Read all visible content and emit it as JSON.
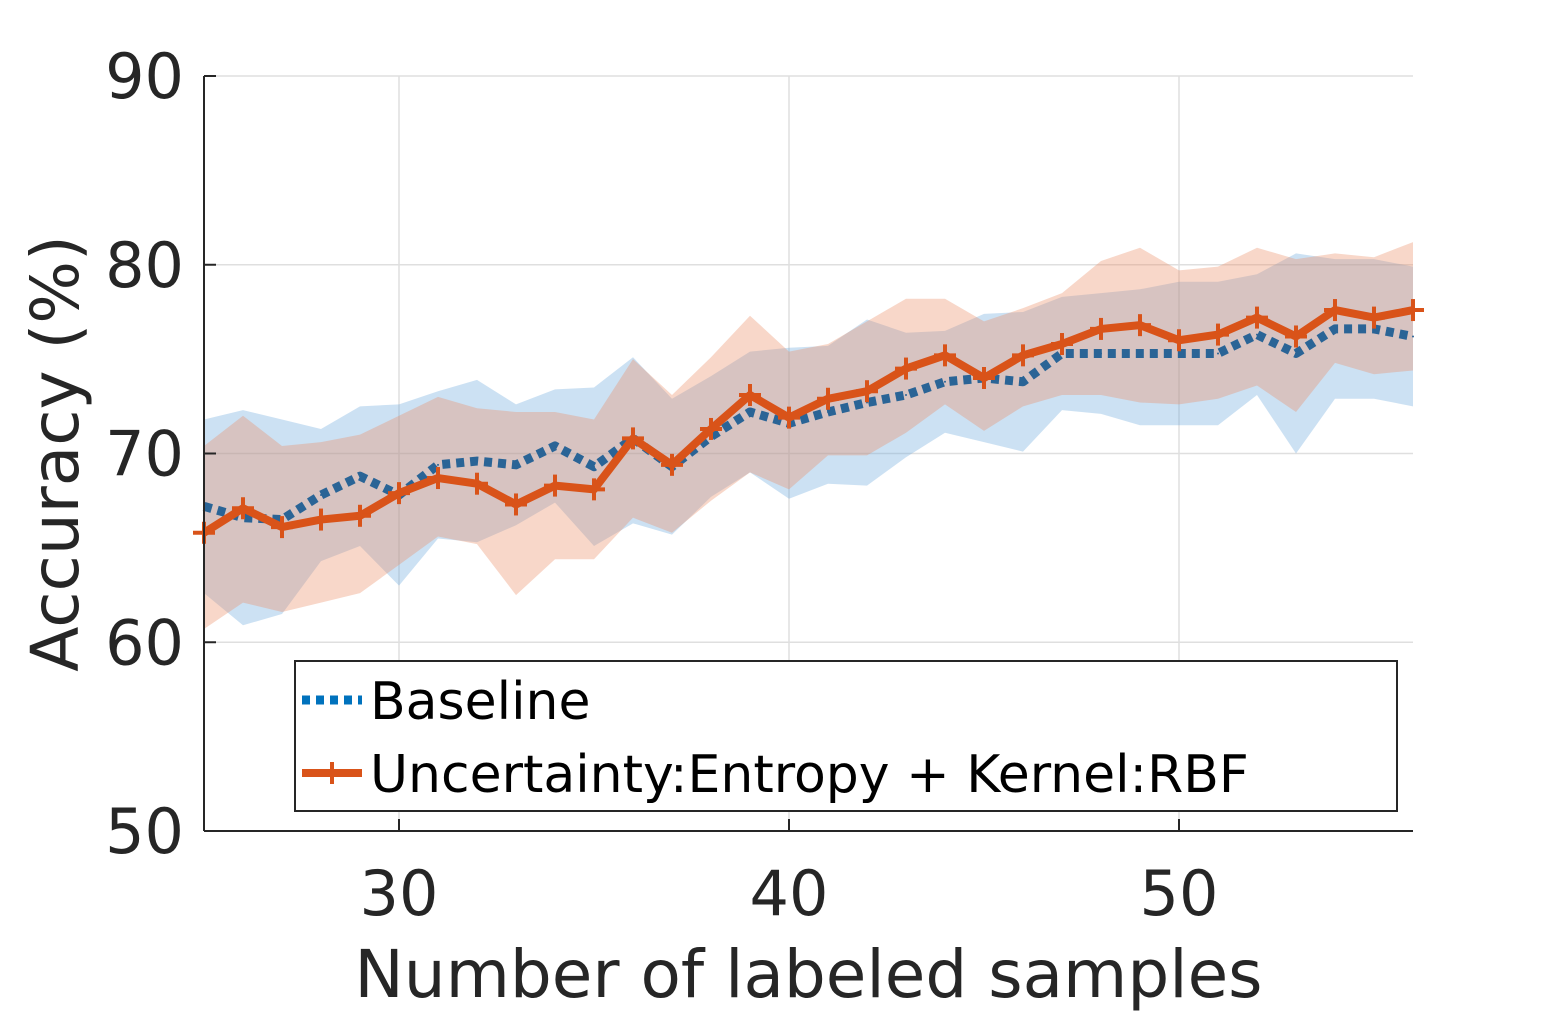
{
  "chart_data": {
    "type": "line",
    "title": "",
    "xlabel": "Number of labeled samples",
    "ylabel": "Accuracy (%)",
    "xlim": [
      25,
      56
    ],
    "ylim": [
      50,
      90
    ],
    "xticks": [
      30,
      40,
      50
    ],
    "yticks": [
      50,
      60,
      70,
      80,
      90
    ],
    "grid": true,
    "legend": {
      "position": "bottom-center",
      "entries": [
        "Baseline",
        "Uncertainty:Entropy + Kernel:RBF"
      ]
    },
    "x": [
      25,
      26,
      27,
      28,
      29,
      30,
      31,
      32,
      33,
      34,
      35,
      36,
      37,
      38,
      39,
      40,
      41,
      42,
      43,
      44,
      45,
      46,
      47,
      48,
      49,
      50,
      51,
      52,
      53,
      54,
      55,
      56
    ],
    "series": [
      {
        "name": "Baseline",
        "color": "#0072BD",
        "line_color": "#2A6496",
        "style": "dotted",
        "marker": "none",
        "values": [
          67.2,
          66.6,
          66.5,
          67.8,
          68.8,
          67.8,
          69.4,
          69.6,
          69.4,
          70.4,
          69.3,
          70.8,
          69.3,
          70.9,
          72.2,
          71.6,
          72.2,
          72.7,
          73.1,
          73.8,
          74.0,
          73.8,
          75.3,
          75.3,
          75.3,
          75.3,
          75.3,
          76.3,
          75.3,
          76.6,
          76.6,
          76.2
        ],
        "upper": [
          71.8,
          72.3,
          71.8,
          71.3,
          72.5,
          72.6,
          73.3,
          73.9,
          72.6,
          73.4,
          73.5,
          75.1,
          72.9,
          74.1,
          75.4,
          75.6,
          75.7,
          77.1,
          76.4,
          76.5,
          77.4,
          77.5,
          78.3,
          78.5,
          78.7,
          79.1,
          79.1,
          79.5,
          80.6,
          80.3,
          80.3,
          79.9
        ],
        "lower": [
          62.6,
          60.9,
          61.5,
          64.3,
          65.1,
          63.0,
          65.5,
          65.3,
          66.2,
          67.4,
          65.1,
          66.3,
          65.7,
          67.7,
          69.0,
          67.6,
          68.4,
          68.3,
          69.8,
          71.1,
          70.6,
          70.1,
          72.3,
          72.1,
          71.5,
          71.5,
          71.5,
          73.1,
          70.0,
          72.9,
          72.9,
          72.5
        ]
      },
      {
        "name": "Uncertainty:Entropy + Kernel:RBF",
        "color": "#D95319",
        "line_color": "#D95319",
        "style": "solid",
        "marker": "plus",
        "values": [
          65.8,
          67.1,
          66.1,
          66.5,
          66.7,
          67.9,
          68.7,
          68.4,
          67.3,
          68.3,
          68.1,
          70.8,
          69.4,
          71.3,
          73.1,
          71.9,
          72.9,
          73.3,
          74.5,
          75.2,
          74.0,
          75.2,
          75.8,
          76.6,
          76.8,
          76.0,
          76.3,
          77.2,
          76.2,
          77.6,
          77.2,
          77.6
        ],
        "upper": [
          70.4,
          72.0,
          70.4,
          70.6,
          71.0,
          72.0,
          73.0,
          72.4,
          72.2,
          72.2,
          71.8,
          75.0,
          73.1,
          75.1,
          77.3,
          75.4,
          75.8,
          77.0,
          78.2,
          78.2,
          77.0,
          77.7,
          78.5,
          80.2,
          80.9,
          79.7,
          79.9,
          80.9,
          80.3,
          80.6,
          80.4,
          81.2
        ],
        "lower": [
          60.7,
          62.1,
          61.6,
          62.1,
          62.6,
          64.1,
          65.6,
          65.2,
          62.5,
          64.4,
          64.4,
          66.6,
          65.8,
          67.5,
          69.0,
          68.1,
          69.9,
          69.9,
          71.1,
          72.6,
          71.2,
          72.5,
          73.1,
          73.1,
          72.7,
          72.6,
          72.9,
          73.6,
          72.2,
          74.8,
          74.2,
          74.4
        ]
      }
    ]
  }
}
